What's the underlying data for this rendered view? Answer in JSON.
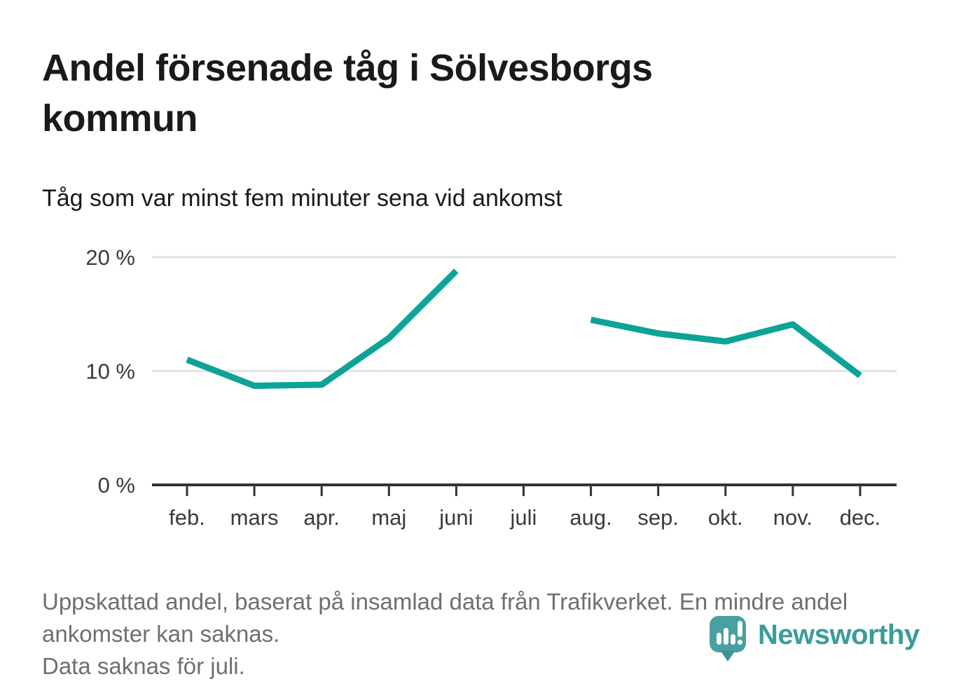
{
  "header": {
    "title": "Andel försenade tåg i Sölvesborgs kommun",
    "subtitle": "Tåg som var minst fem minuter sena vid ankomst"
  },
  "chart_data": {
    "type": "line",
    "title": "Andel försenade tåg i Sölvesborgs kommun",
    "subtitle": "Tåg som var minst fem minuter sena vid ankomst",
    "categories": [
      "feb.",
      "mars",
      "apr.",
      "maj",
      "juni",
      "juli",
      "aug.",
      "sep.",
      "okt.",
      "nov.",
      "dec."
    ],
    "values": [
      11.0,
      8.7,
      8.8,
      12.9,
      18.8,
      null,
      14.5,
      13.3,
      12.6,
      14.1,
      9.6
    ],
    "unit": "%",
    "ylim": [
      0,
      21.5
    ],
    "yticks": [
      0,
      10,
      20
    ],
    "ytick_labels": [
      "0 %",
      "10 %",
      "20 %"
    ],
    "grid": "horizontal-only",
    "legend": "none",
    "line_color": "#0DA396",
    "missing_data": "juli has no data (gap in line)"
  },
  "footer": {
    "source_note": "Uppskattad andel, baserat på insamlad data från Trafikverket. En mindre andel ankomster kan saknas.",
    "missing_note": "Data saknas för juli."
  },
  "logo": {
    "text": "Newsworthy"
  },
  "colors": {
    "line": "#0DA396",
    "gridline": "#E2E2E2",
    "axis": "#333333",
    "axis_text": "#3A3A3A",
    "title_text": "#1A1A1A",
    "footer_text": "#6E6E73",
    "logo_icon": "#48A1A0",
    "logo_tail": "#3D9295",
    "logo_text": "#3B9C9B"
  }
}
